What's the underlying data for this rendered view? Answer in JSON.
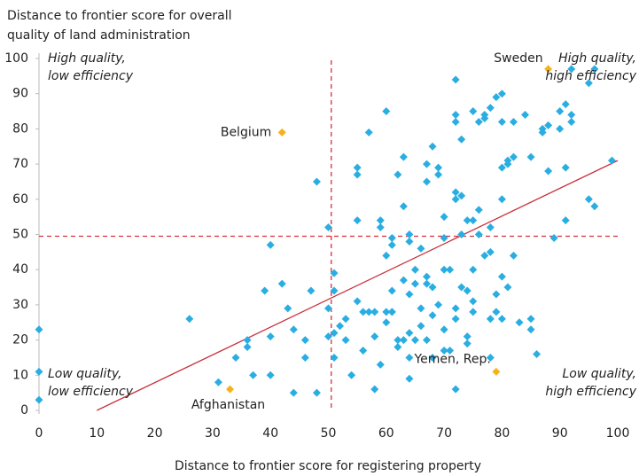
{
  "chart_data": {
    "type": "scatter",
    "y_label": [
      "Distance to frontier score for overall",
      "quality of land administration"
    ],
    "x_label": "Distance to frontier score for registering property",
    "xlim": [
      0,
      100
    ],
    "ylim": [
      0,
      100
    ],
    "xticks": [
      0,
      10,
      20,
      30,
      40,
      50,
      60,
      70,
      80,
      90,
      100
    ],
    "yticks": [
      0,
      10,
      20,
      30,
      40,
      50,
      60,
      70,
      80,
      90,
      100
    ],
    "color": "#2aaee2",
    "x": [
      0,
      0,
      0,
      26,
      31,
      34,
      36,
      36,
      37,
      39,
      40,
      40,
      40,
      42,
      43,
      44,
      44,
      46,
      46,
      47,
      48,
      48,
      50,
      50,
      50,
      51,
      51,
      51,
      51,
      52,
      53,
      53,
      54,
      55,
      55,
      55,
      55,
      56,
      56,
      57,
      57,
      58,
      58,
      58,
      59,
      59,
      59,
      60,
      60,
      60,
      60,
      61,
      61,
      61,
      61,
      61,
      62,
      62,
      62,
      63,
      63,
      63,
      63,
      64,
      64,
      64,
      64,
      64,
      64,
      65,
      65,
      65,
      66,
      66,
      66,
      67,
      67,
      67,
      67,
      67,
      68,
      68,
      68,
      68,
      69,
      69,
      69,
      70,
      70,
      70,
      70,
      70,
      71,
      71,
      72,
      72,
      72,
      72,
      72,
      72,
      72,
      72,
      73,
      73,
      73,
      73,
      74,
      74,
      74,
      74,
      75,
      75,
      75,
      75,
      75,
      76,
      76,
      76,
      77,
      77,
      77,
      78,
      78,
      78,
      78,
      78,
      79,
      79,
      79,
      80,
      80,
      80,
      80,
      80,
      80,
      81,
      81,
      81,
      82,
      82,
      82,
      83,
      84,
      85,
      85,
      85,
      86,
      87,
      87,
      88,
      88,
      89,
      90,
      90,
      91,
      91,
      91,
      92,
      92,
      95,
      95,
      96,
      96,
      99,
      92
    ],
    "y": [
      23,
      11,
      3,
      26,
      8,
      15,
      20,
      18,
      10,
      34,
      21,
      10,
      47,
      36,
      29,
      5,
      23,
      15,
      20,
      34,
      65,
      5,
      29,
      21,
      52,
      39,
      34,
      15,
      22,
      24,
      26,
      20,
      10,
      54,
      67,
      31,
      69,
      17,
      28,
      28,
      79,
      28,
      21,
      6,
      54,
      52,
      13,
      85,
      44,
      25,
      28,
      28,
      49,
      47,
      34,
      28,
      67,
      18,
      20,
      72,
      58,
      37,
      20,
      50,
      48,
      33,
      22,
      15,
      9,
      40,
      20,
      36,
      46,
      29,
      24,
      70,
      65,
      36,
      38,
      20,
      75,
      27,
      35,
      15,
      69,
      67,
      30,
      49,
      55,
      40,
      23,
      17,
      17,
      40,
      94,
      62,
      60,
      84,
      82,
      29,
      26,
      6,
      61,
      77,
      50,
      35,
      54,
      21,
      19,
      34,
      54,
      31,
      28,
      40,
      85,
      82,
      57,
      50,
      84,
      83,
      44,
      86,
      52,
      45,
      26,
      15,
      33,
      89,
      28,
      90,
      82,
      69,
      60,
      38,
      26,
      70,
      71,
      35,
      82,
      72,
      44,
      25,
      84,
      72,
      26,
      23,
      16,
      80,
      79,
      68,
      81,
      49,
      80,
      85,
      87,
      54,
      69,
      84,
      82,
      93,
      60,
      97,
      58,
      71,
      97
    ],
    "highlights": {
      "color": "#f5b21b",
      "names": [
        "Sweden",
        "Belgium",
        "Afghanistan",
        "Yemen, Rep."
      ],
      "x": [
        88,
        42,
        33,
        79
      ],
      "y": [
        97,
        79,
        6,
        11
      ]
    },
    "trendline": {
      "color": "#c8323c",
      "x": [
        10,
        100
      ],
      "y": [
        0,
        71
      ]
    },
    "reference_lines": {
      "color": "#d8303a",
      "x": 50.5,
      "y": 49.5
    },
    "quadrant_labels": [
      [
        "High quality,",
        "low efficiency"
      ],
      [
        "High quality,",
        "high efficiency"
      ],
      [
        "Low quality,",
        "low efficiency"
      ],
      [
        "Low quality,",
        "high efficiency"
      ]
    ]
  }
}
